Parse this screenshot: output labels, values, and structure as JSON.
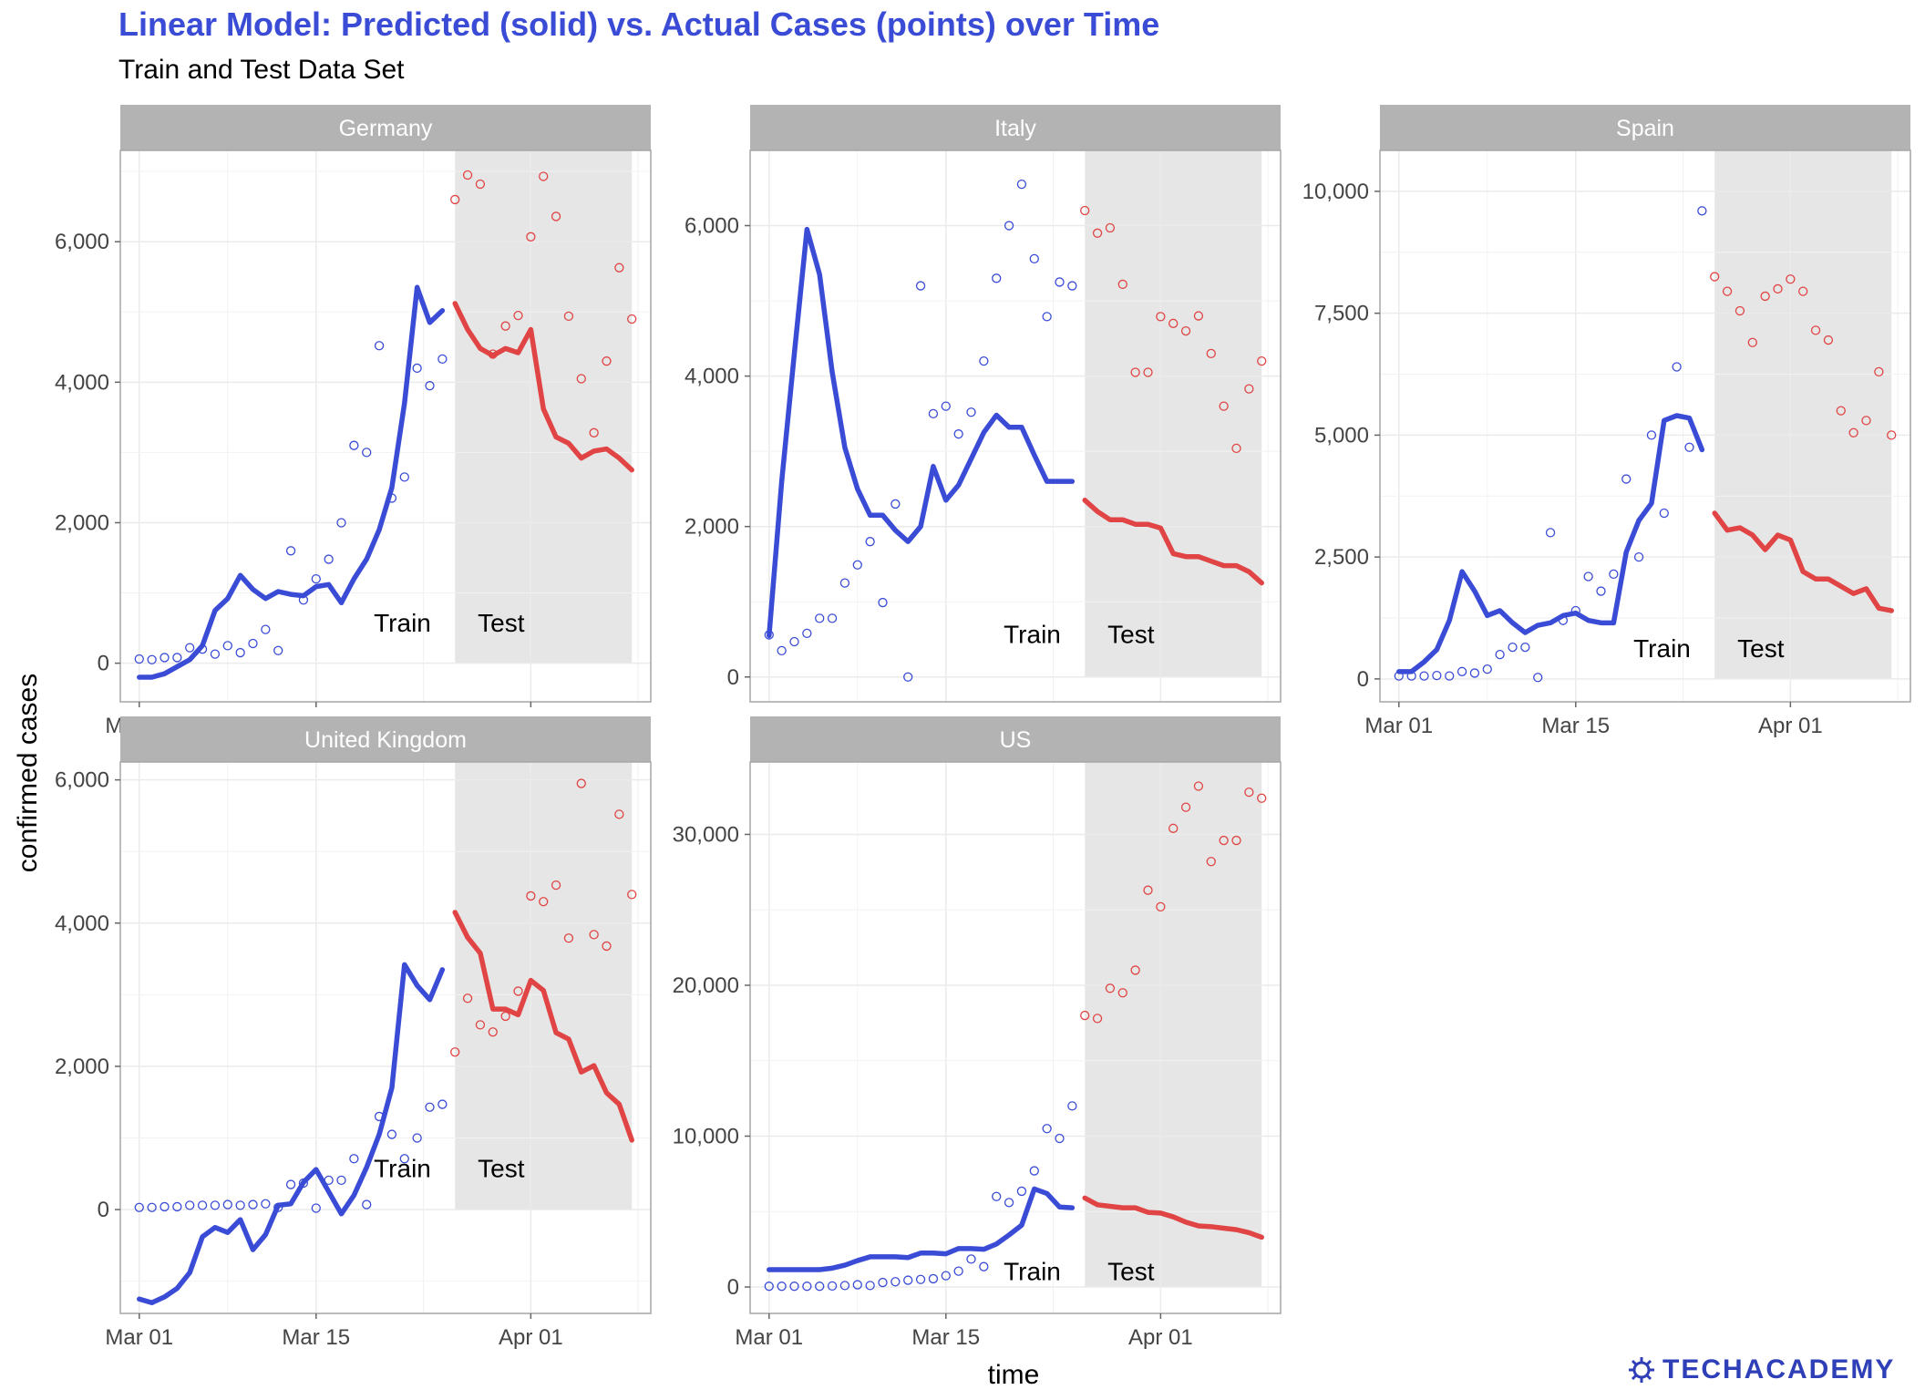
{
  "chart_data": {
    "type": "line",
    "title": "Linear Model: Predicted (solid) vs. Actual Cases (points) over Time",
    "subtitle": "Train and Test Data Set",
    "xlabel": "time",
    "ylabel": "confirmed cases",
    "x_start": "2020-03-01",
    "x_ticks": [
      "Mar 01",
      "Mar 15",
      "Apr 01"
    ],
    "x_tick_days": [
      0,
      14,
      31
    ],
    "x_range_days": [
      -1.5,
      40.5
    ],
    "train_days": [
      0,
      24
    ],
    "test_days": [
      25,
      39
    ],
    "annotation_labels": [
      "Train",
      "Test"
    ],
    "colors": {
      "train": "#3a4cd6",
      "test": "#e04444",
      "strip": "#b3b3b3",
      "test_band": "#e6e6e6",
      "grid": "#ebebeb"
    },
    "panels": [
      {
        "name": "Germany",
        "ylim": [
          -550,
          7300
        ],
        "y_ticks": [
          0,
          2000,
          4000,
          6000
        ],
        "y_tick_labels": [
          "0",
          "2,000",
          "4,000",
          "6,000"
        ],
        "annotation_y": 450,
        "predicted_train": [
          -200,
          -200,
          -150,
          -50,
          50,
          250,
          750,
          920,
          1250,
          1050,
          920,
          1020,
          980,
          960,
          1090,
          1120,
          860,
          1200,
          1480,
          1900,
          2500,
          3700,
          5350,
          4850,
          5020
        ],
        "predicted_test": [
          5120,
          4750,
          4480,
          4380,
          4480,
          4420,
          4750,
          3620,
          3220,
          3130,
          2920,
          3020,
          3050,
          2920,
          2750
        ],
        "actual_train": [
          60,
          50,
          80,
          80,
          220,
          200,
          130,
          250,
          150,
          280,
          480,
          180,
          1600,
          900,
          1200,
          1480,
          2000,
          3100,
          3000,
          4520,
          2350,
          2650,
          4200,
          3950,
          4330
        ],
        "actual_test": [
          6600,
          6950,
          6820,
          4400,
          4800,
          4950,
          6070,
          6930,
          6360,
          4940,
          4050,
          3280,
          4300,
          5630,
          4900
        ]
      },
      {
        "name": "Italy",
        "ylim": [
          -330,
          7000
        ],
        "y_ticks": [
          0,
          2000,
          4000,
          6000
        ],
        "y_tick_labels": [
          "0",
          "2,000",
          "4,000",
          "6,000"
        ],
        "annotation_y": 450,
        "predicted_train": [
          550,
          2600,
          4300,
          5950,
          5350,
          4050,
          3050,
          2500,
          2150,
          2150,
          1950,
          1800,
          2000,
          2800,
          2350,
          2550,
          2900,
          3250,
          3480,
          3320,
          3320,
          2950,
          2600,
          2600,
          2600
        ],
        "predicted_test": [
          2350,
          2200,
          2090,
          2090,
          2030,
          2030,
          1980,
          1640,
          1600,
          1600,
          1540,
          1480,
          1480,
          1400,
          1250
        ],
        "actual_train": [
          560,
          350,
          470,
          580,
          780,
          780,
          1250,
          1490,
          1800,
          990,
          2300,
          0,
          5200,
          3500,
          3600,
          3230,
          3520,
          4200,
          5300,
          6000,
          6550,
          5560,
          4790,
          5250,
          5200
        ],
        "actual_test": [
          6200,
          5900,
          5970,
          5220,
          4050,
          4050,
          4790,
          4700,
          4600,
          4800,
          4300,
          3600,
          3040,
          3830,
          4200
        ]
      },
      {
        "name": "Spain",
        "ylim": [
          -470,
          10840
        ],
        "y_ticks": [
          0,
          2500,
          5000,
          7500,
          10000
        ],
        "y_tick_labels": [
          "0",
          "2,500",
          "5,000",
          "7,500",
          "10,000"
        ],
        "annotation_y": 450,
        "predicted_train": [
          150,
          150,
          350,
          600,
          1200,
          2200,
          1800,
          1300,
          1400,
          1150,
          950,
          1100,
          1150,
          1300,
          1350,
          1200,
          1150,
          1150,
          2600,
          3250,
          3600,
          5300,
          5400,
          5350,
          4700
        ],
        "predicted_test": [
          3400,
          3050,
          3100,
          2950,
          2650,
          2950,
          2850,
          2200,
          2050,
          2050,
          1900,
          1750,
          1850,
          1450,
          1400
        ],
        "actual_train": [
          60,
          60,
          60,
          70,
          60,
          150,
          120,
          200,
          500,
          650,
          650,
          30,
          3000,
          1200,
          1400,
          2100,
          1800,
          2150,
          4100,
          2500,
          5000,
          3400,
          6400,
          4750,
          9600
        ],
        "actual_test": [
          8250,
          7950,
          7550,
          6900,
          7850,
          8000,
          8200,
          7950,
          7150,
          6950,
          5500,
          5050,
          5300,
          6300,
          5000
        ]
      },
      {
        "name": "United Kingdom",
        "ylim": [
          -1450,
          6250
        ],
        "y_ticks": [
          0,
          2000,
          4000,
          6000
        ],
        "y_tick_labels": [
          "0",
          "2,000",
          "4,000",
          "6,000"
        ],
        "annotation_y": 450,
        "predicted_train": [
          -1250,
          -1300,
          -1220,
          -1100,
          -880,
          -380,
          -250,
          -320,
          -140,
          -560,
          -350,
          60,
          80,
          380,
          560,
          250,
          -60,
          200,
          590,
          1050,
          1700,
          3420,
          3130,
          2930,
          3350
        ],
        "predicted_test": [
          4150,
          3800,
          3580,
          2800,
          2800,
          2720,
          3200,
          3060,
          2470,
          2380,
          1920,
          2010,
          1630,
          1470,
          970
        ],
        "actual_train": [
          30,
          30,
          40,
          40,
          60,
          60,
          60,
          70,
          60,
          70,
          80,
          30,
          350,
          370,
          20,
          410,
          410,
          710,
          70,
          1300,
          1050,
          710,
          1000,
          1430,
          1470
        ],
        "actual_test": [
          2200,
          2950,
          2580,
          2480,
          2700,
          3050,
          4380,
          4300,
          4530,
          3790,
          5950,
          3840,
          3680,
          5520,
          4400
        ]
      },
      {
        "name": "US",
        "ylim": [
          -1750,
          34800
        ],
        "y_ticks": [
          0,
          10000,
          20000,
          30000
        ],
        "y_tick_labels": [
          "0",
          "10,000",
          "20,000",
          "30,000"
        ],
        "annotation_y": 450,
        "predicted_train": [
          1150,
          1150,
          1150,
          1150,
          1150,
          1250,
          1450,
          1750,
          2000,
          2000,
          2000,
          1950,
          2250,
          2250,
          2200,
          2550,
          2550,
          2500,
          2850,
          3450,
          4100,
          6500,
          6200,
          5300,
          5250
        ],
        "predicted_test": [
          5900,
          5450,
          5350,
          5250,
          5250,
          4950,
          4900,
          4650,
          4300,
          4050,
          4000,
          3900,
          3800,
          3600,
          3300
        ],
        "actual_train": [
          50,
          50,
          50,
          50,
          50,
          70,
          100,
          150,
          100,
          300,
          350,
          450,
          500,
          550,
          750,
          1050,
          1850,
          1350,
          6000,
          5600,
          6350,
          7700,
          10500,
          9850,
          12000
        ],
        "actual_test": [
          18000,
          17800,
          19800,
          19500,
          21000,
          26300,
          25200,
          30400,
          31800,
          33200,
          28200,
          29600,
          29600,
          32800,
          32400
        ]
      }
    ]
  },
  "logo": {
    "text": "TECHACADEMY",
    "icon": "gear-icon"
  }
}
